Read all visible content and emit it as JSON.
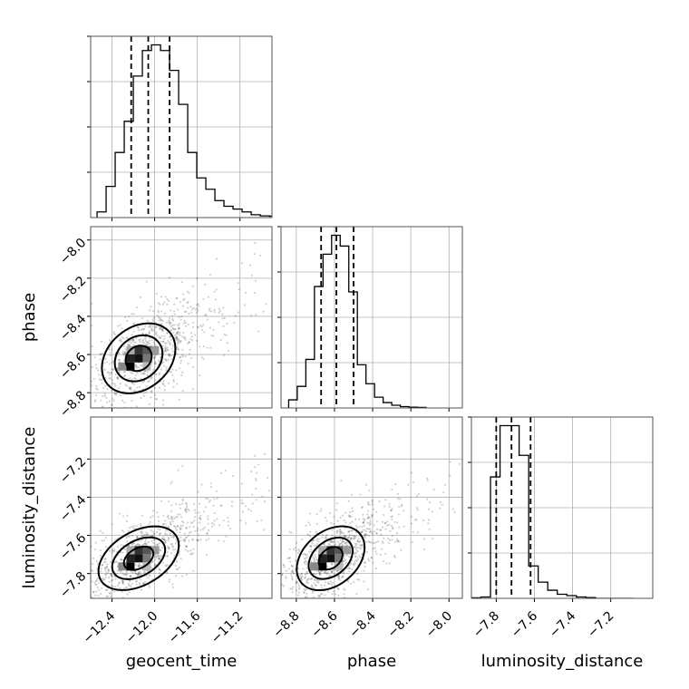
{
  "chart_data": [
    {
      "type": "histogram",
      "param": "geocent_time",
      "xlim": [
        -12.6,
        -10.9
      ],
      "xticks": [
        -12.4,
        -12.0,
        -11.6,
        -11.2
      ],
      "bin_edges_start": -12.54,
      "bin_width": 0.085,
      "counts": [
        2,
        11,
        23,
        34,
        50,
        59,
        61,
        59,
        52,
        40,
        23,
        14,
        10,
        6,
        4,
        3,
        2,
        1,
        0.6,
        0.5,
        0.3,
        0.2
      ],
      "quantiles": [
        -12.22,
        -12.06,
        -11.86
      ],
      "grid": true
    },
    {
      "type": "scatter",
      "xparam": "geocent_time",
      "yparam": "phase",
      "xlim": [
        -12.6,
        -10.9
      ],
      "ylim": [
        -8.88,
        -7.93
      ],
      "xticks": [
        -12.4,
        -12.0,
        -11.6,
        -11.2
      ],
      "yticks": [
        -8.0,
        -8.2,
        -8.4,
        -8.6,
        -8.8
      ],
      "center": [
        -12.15,
        -8.62
      ],
      "contours": [
        {
          "sx": 0.13,
          "sy": 0.062,
          "angle": 40
        },
        {
          "sx": 0.24,
          "sy": 0.11,
          "angle": 40
        },
        {
          "sx": 0.38,
          "sy": 0.16,
          "angle": 40
        }
      ],
      "grid": true
    },
    {
      "type": "histogram",
      "param": "phase",
      "xlim": [
        -8.88,
        -7.93
      ],
      "xticks": [
        -8.8,
        -8.6,
        -8.4,
        -8.2,
        -8.0
      ],
      "bin_edges_start": -8.84,
      "bin_width": 0.045,
      "counts": [
        3,
        8,
        18,
        45,
        57,
        64,
        60,
        43,
        16,
        9,
        4,
        2,
        1,
        0.5,
        0.3,
        0.2
      ],
      "quantiles": [
        -8.67,
        -8.59,
        -8.5
      ],
      "grid": true
    },
    {
      "type": "scatter",
      "xparam": "geocent_time",
      "yparam": "luminosity_distance",
      "xlim": [
        -12.6,
        -10.9
      ],
      "ylim": [
        -7.93,
        -6.98
      ],
      "xticks": [
        -12.4,
        -12.0,
        -11.6,
        -11.2
      ],
      "yticks": [
        -7.2,
        -7.4,
        -7.6,
        -7.8
      ],
      "center": [
        -12.15,
        -7.72
      ],
      "contours": [
        {
          "sx": 0.15,
          "sy": 0.052,
          "angle": 30
        },
        {
          "sx": 0.27,
          "sy": 0.092,
          "angle": 30
        },
        {
          "sx": 0.41,
          "sy": 0.14,
          "angle": 30
        }
      ],
      "grid": true
    },
    {
      "type": "scatter",
      "xparam": "phase",
      "yparam": "luminosity_distance",
      "xlim": [
        -8.88,
        -7.93
      ],
      "ylim": [
        -7.93,
        -6.98
      ],
      "xticks": [
        -8.8,
        -8.6,
        -8.4,
        -8.2,
        -8.0
      ],
      "yticks": [
        -7.2,
        -7.4,
        -7.6,
        -7.8
      ],
      "center": [
        -8.62,
        -7.72
      ],
      "contours": [
        {
          "sx": 0.07,
          "sy": 0.05,
          "angle": 40
        },
        {
          "sx": 0.13,
          "sy": 0.09,
          "angle": 40
        },
        {
          "sx": 0.2,
          "sy": 0.14,
          "angle": 40
        }
      ],
      "grid": true
    },
    {
      "type": "histogram",
      "param": "luminosity_distance",
      "xlim": [
        -7.93,
        -6.98
      ],
      "xticks": [
        -7.8,
        -7.6,
        -7.4,
        -7.2
      ],
      "bin_edges_start": -7.93,
      "bin_width": 0.05,
      "counts": [
        0.2,
        0.5,
        45,
        64,
        64,
        53,
        12,
        6,
        3,
        1.5,
        1,
        0.5,
        0.3,
        0,
        0,
        0,
        0
      ],
      "quantiles": [
        -7.8,
        -7.72,
        -7.62
      ],
      "grid": true
    }
  ],
  "labels": {
    "x_geocent": "geocent_time",
    "x_phase": "phase",
    "x_lum": "luminosity_distance",
    "y_phase": "phase",
    "y_lum": "luminosity_distance"
  }
}
